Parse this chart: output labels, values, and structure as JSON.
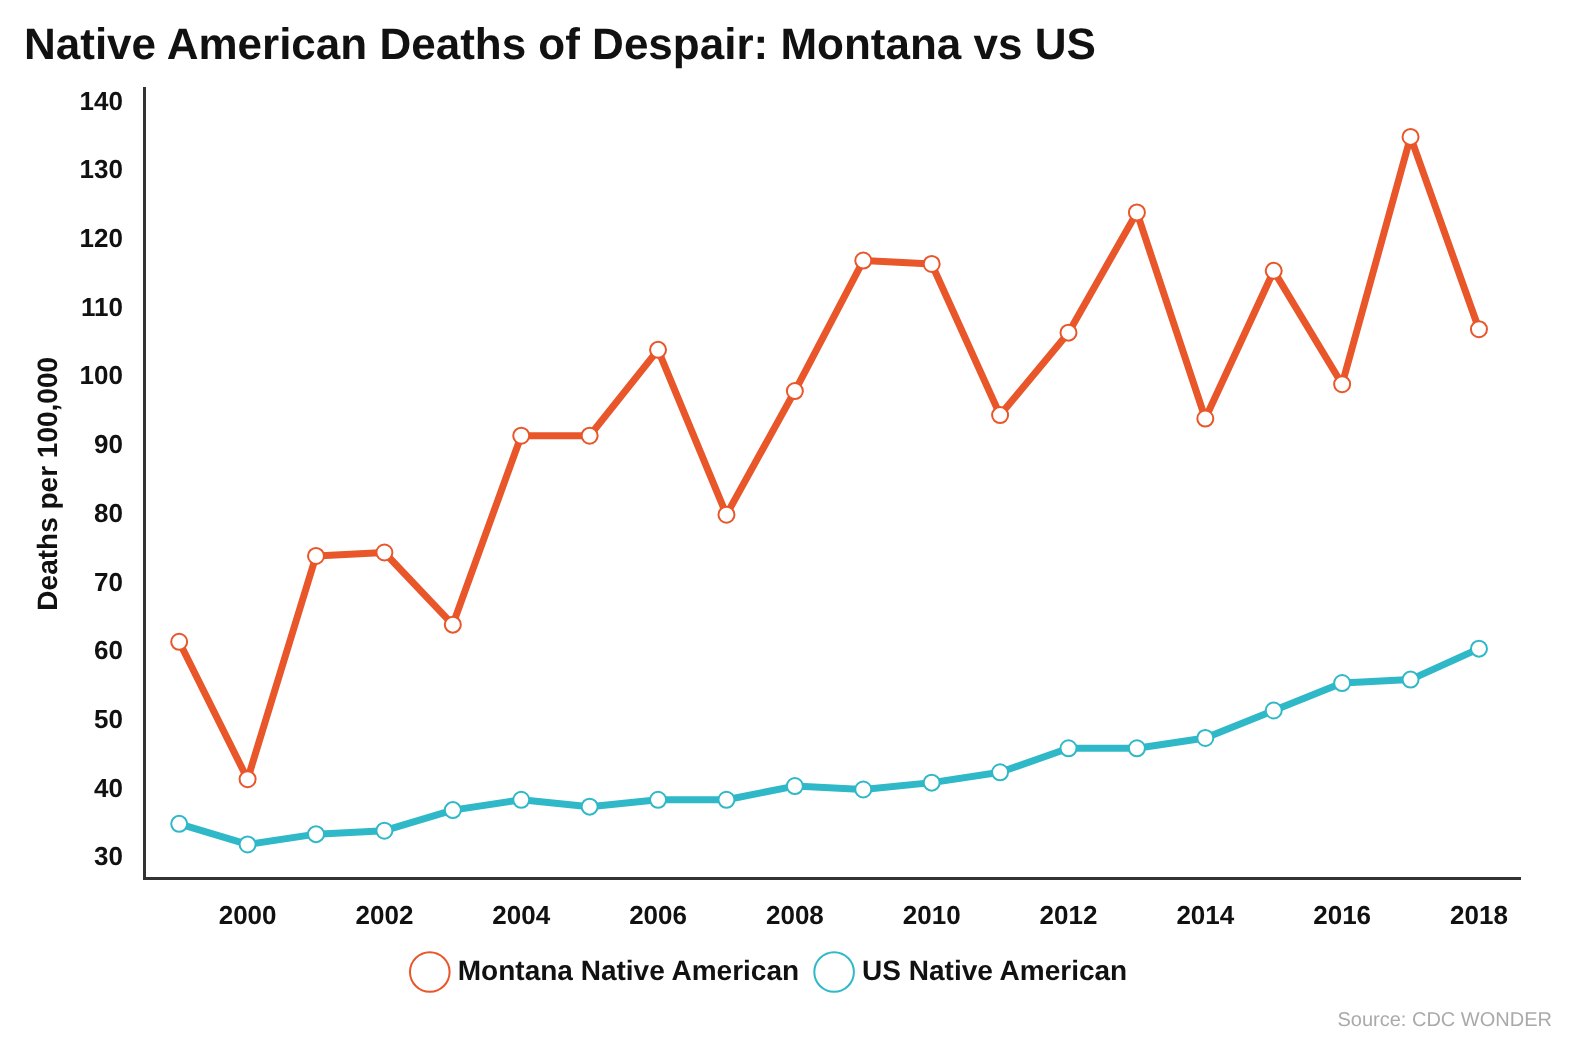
{
  "chart_data": {
    "type": "line",
    "title": "Native American Deaths of Despair: Montana vs US",
    "ylabel": "Deaths per 100,000",
    "x": [
      1999,
      2000,
      2001,
      2002,
      2003,
      2004,
      2005,
      2006,
      2007,
      2008,
      2009,
      2010,
      2011,
      2012,
      2013,
      2014,
      2015,
      2016,
      2017,
      2018
    ],
    "series": [
      {
        "name": "Montana Native American",
        "color": "#e8562a",
        "values": [
          61.5,
          41.5,
          74,
          74.5,
          64,
          91.5,
          91.5,
          104,
          80,
          98,
          117,
          116.5,
          94.5,
          106.5,
          124,
          94,
          115.5,
          99,
          135,
          107
        ]
      },
      {
        "name": "US Native American",
        "color": "#2fb8c8",
        "values": [
          35,
          32,
          33.5,
          34,
          37,
          38.5,
          37.5,
          38.5,
          38.5,
          40.5,
          40,
          41,
          42.5,
          46,
          46,
          47.5,
          51.5,
          55.5,
          56,
          60.5
        ]
      }
    ],
    "xlim": [
      1998.5,
      2018.6
    ],
    "xticks": [
      2000,
      2002,
      2004,
      2006,
      2008,
      2010,
      2012,
      2014,
      2016,
      2018
    ],
    "ylim": [
      27,
      142
    ],
    "yticks": [
      30,
      40,
      50,
      60,
      70,
      80,
      90,
      100,
      110,
      120,
      130,
      140
    ],
    "grid": false,
    "legend": "bottom",
    "marker": "circle",
    "line_style": "solid",
    "annotations": [
      "Source: CDC WONDER"
    ]
  }
}
